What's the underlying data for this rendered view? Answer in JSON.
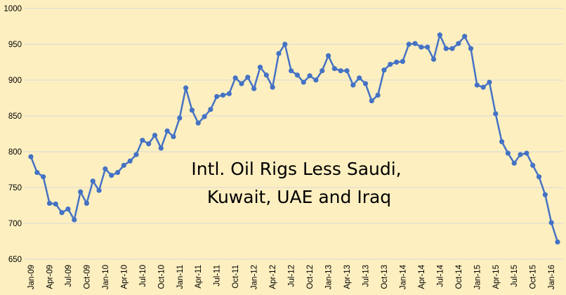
{
  "chart_data": {
    "type": "line",
    "title_lines": [
      "Intl. Oil Rigs Less Saudi,",
      "Kuwait, UAE and Iraq"
    ],
    "xlabel": "",
    "ylabel": "",
    "ylim": [
      650,
      1000
    ],
    "yticks": [
      650,
      700,
      750,
      800,
      850,
      900,
      950,
      1000
    ],
    "grid": "horizontal",
    "legend": "none",
    "x_labels": [
      "Jan-09",
      "Apr-09",
      "Jul-09",
      "Oct-09",
      "Jan-10",
      "Apr-10",
      "Jul-10",
      "Oct-10",
      "Jan-11",
      "Apr-11",
      "Jul-11",
      "Oct-11",
      "Jan-12",
      "Apr-12",
      "Jul-12",
      "Oct-12",
      "Jan-13",
      "Apr-13",
      "Jul-13",
      "Oct-13",
      "Jan-14",
      "Apr-14",
      "Jul-14",
      "Oct-14",
      "Jan-15",
      "Apr-15",
      "Jul-15",
      "Oct-15",
      "Jan-16"
    ],
    "series": [
      {
        "color": "#4472C4",
        "values": [
          793,
          771,
          765,
          728,
          727,
          715,
          720,
          705,
          744,
          728,
          759,
          746,
          776,
          767,
          771,
          781,
          787,
          796,
          816,
          811,
          823,
          805,
          829,
          821,
          847,
          889,
          858,
          840,
          849,
          859,
          877,
          879,
          881,
          903,
          895,
          904,
          888,
          918,
          907,
          890,
          937,
          950,
          913,
          907,
          897,
          906,
          900,
          913,
          934,
          916,
          913,
          913,
          893,
          903,
          895,
          871,
          879,
          914,
          922,
          925,
          926,
          950,
          951,
          946,
          946,
          929,
          963,
          944,
          944,
          951,
          961,
          944,
          893,
          890,
          897,
          853,
          814,
          798,
          784,
          796,
          798,
          781,
          765,
          740,
          701,
          674
        ]
      }
    ]
  }
}
